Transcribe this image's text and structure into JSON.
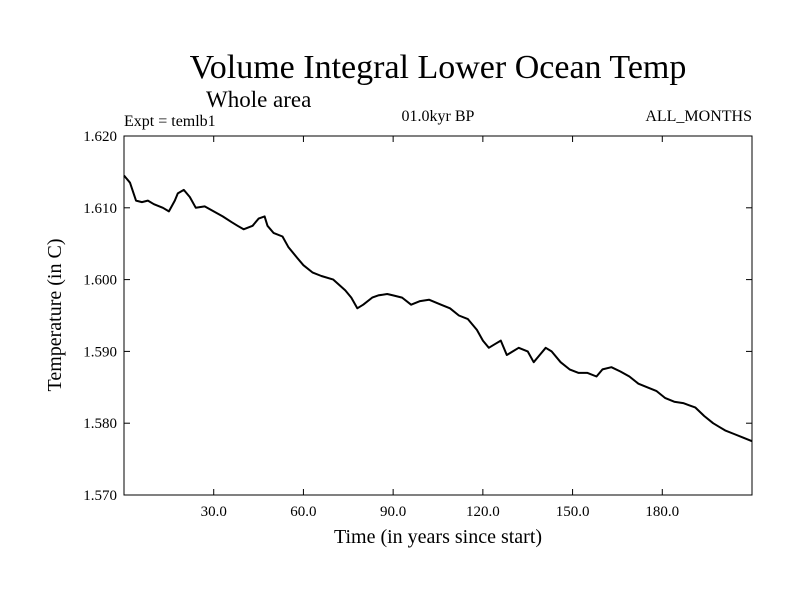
{
  "chart_data": {
    "type": "line",
    "title": "Volume Integral Lower Ocean Temp",
    "subtitle": "Whole area",
    "experiment_label": "Expt = temlb1",
    "period_label": "01.0kyr BP",
    "months_label": "ALL_MONTHS",
    "xlabel": "Time (in years since start)",
    "ylabel": "Temperature (in C)",
    "xlim": [
      0,
      210
    ],
    "ylim": [
      1.57,
      1.62
    ],
    "xticks": [
      30,
      60,
      90,
      120,
      150,
      180
    ],
    "xtick_labels": [
      "30.0",
      "60.0",
      "90.0",
      "120.0",
      "150.0",
      "180.0"
    ],
    "yticks": [
      1.57,
      1.58,
      1.59,
      1.6,
      1.61,
      1.62
    ],
    "ytick_labels": [
      "1.570",
      "1.580",
      "1.590",
      "1.600",
      "1.610",
      "1.620"
    ],
    "grid": false,
    "series": [
      {
        "name": "temlb1",
        "x": [
          0,
          2,
          4,
          6,
          8,
          10,
          13,
          15,
          17,
          18,
          20,
          22,
          24,
          27,
          30,
          33,
          36,
          38,
          40,
          43,
          45,
          47,
          48,
          50,
          53,
          55,
          58,
          60,
          63,
          66,
          70,
          74,
          76,
          78,
          80,
          83,
          85,
          88,
          90,
          93,
          96,
          99,
          102,
          106,
          109,
          112,
          115,
          118,
          120,
          122,
          124,
          126,
          128,
          130,
          132,
          135,
          137,
          139,
          141,
          143,
          146,
          149,
          152,
          155,
          158,
          160,
          163,
          166,
          169,
          172,
          175,
          178,
          181,
          184,
          187,
          189,
          191,
          194,
          197,
          199,
          201,
          204,
          207,
          210
        ],
        "y": [
          1.6145,
          1.6135,
          1.611,
          1.6108,
          1.611,
          1.6105,
          1.61,
          1.6095,
          1.611,
          1.612,
          1.6125,
          1.6115,
          1.61,
          1.6102,
          1.6095,
          1.6088,
          1.608,
          1.6075,
          1.607,
          1.6075,
          1.6085,
          1.6088,
          1.6075,
          1.6065,
          1.606,
          1.6045,
          1.603,
          1.602,
          1.601,
          1.6005,
          1.6,
          1.5985,
          1.5975,
          1.596,
          1.5965,
          1.5975,
          1.5978,
          1.598,
          1.5978,
          1.5975,
          1.5965,
          1.597,
          1.5972,
          1.5965,
          1.596,
          1.595,
          1.5945,
          1.593,
          1.5915,
          1.5905,
          1.591,
          1.5915,
          1.5895,
          1.59,
          1.5905,
          1.59,
          1.5885,
          1.5895,
          1.5905,
          1.59,
          1.5885,
          1.5875,
          1.587,
          1.587,
          1.5865,
          1.5875,
          1.5878,
          1.5872,
          1.5865,
          1.5855,
          1.585,
          1.5845,
          1.5835,
          1.583,
          1.5828,
          1.5825,
          1.5822,
          1.581,
          1.58,
          1.5795,
          1.579,
          1.5785,
          1.578,
          1.5775
        ]
      }
    ]
  }
}
